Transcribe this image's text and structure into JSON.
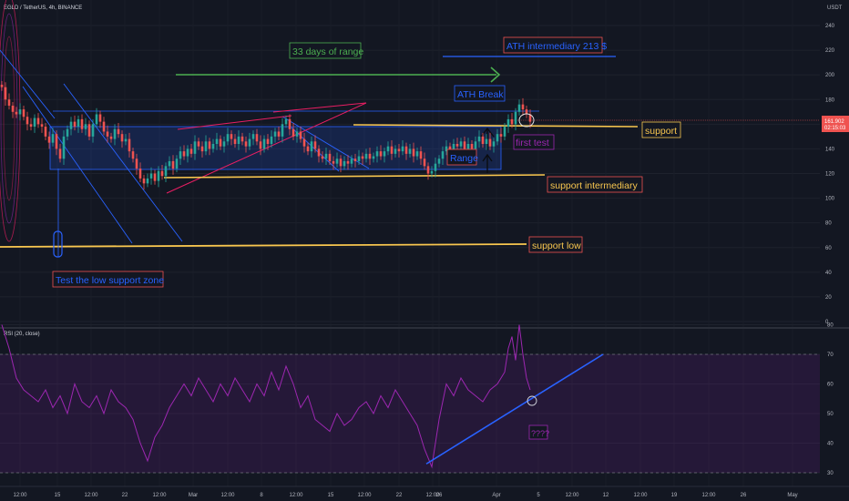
{
  "header": {
    "symbol": "EGLD / TetherUS, 4h, BINANCE",
    "currency": "USDT"
  },
  "price_axis": {
    "ticks": [
      "240",
      "220",
      "200",
      "180",
      "160",
      "140",
      "120",
      "100",
      "80",
      "60",
      "40",
      "20",
      "0"
    ],
    "last_price": "161.902",
    "countdown": "02:15:03"
  },
  "rsi_axis": {
    "ticks": [
      "80",
      "70",
      "60",
      "50",
      "40",
      "30"
    ]
  },
  "time_axis": {
    "ticks": [
      "12:00",
      "15",
      "12:00",
      "22",
      "12:00",
      "Mar",
      "12:00",
      "8",
      "12:00",
      "15",
      "12:00",
      "22",
      "12:00",
      "26",
      "Apr",
      "5",
      "12:00",
      "12",
      "12:00",
      "19",
      "12:00",
      "26",
      "May"
    ]
  },
  "annotations": {
    "range_days": "33 days of range",
    "ath_intermediary": "ATH intermediary 213 $",
    "ath_break": "ATH Break",
    "support": "support",
    "first_test": "first test",
    "range": "Range",
    "support_intermediary": "support  intermediary",
    "support_low": "support low",
    "test_low": "Test the low support zone",
    "rsi_question": "????"
  },
  "rsi_label": "RSI (20, close)",
  "colors": {
    "background": "#131722",
    "up": "#26a69a",
    "down": "#ef5350",
    "support": "#f9c74f",
    "trend": "#2962ff",
    "wedge": "#e91e63",
    "rsi": "#9c27b0",
    "arrow": "#4caf50"
  },
  "chart_data": [
    {
      "type": "candlestick",
      "title": "EGLD / TetherUS, 4h, BINANCE",
      "ylim": [
        0,
        245
      ],
      "x_ticks": [
        "12:00",
        "15",
        "12:00",
        "22",
        "12:00",
        "Mar",
        "12:00",
        "8",
        "12:00",
        "15",
        "12:00",
        "22",
        "12:00",
        "26",
        "Apr",
        "5",
        "12:00",
        "12",
        "12:00",
        "19",
        "12:00",
        "26",
        "May"
      ],
      "close_series": [
        [
          0,
          190
        ],
        [
          4,
          180
        ],
        [
          8,
          175
        ],
        [
          12,
          170
        ],
        [
          16,
          168
        ],
        [
          20,
          172
        ],
        [
          24,
          166
        ],
        [
          28,
          160
        ],
        [
          32,
          158
        ],
        [
          36,
          165
        ],
        [
          40,
          160
        ],
        [
          44,
          158
        ],
        [
          48,
          150
        ],
        [
          52,
          145
        ],
        [
          56,
          152
        ],
        [
          60,
          140
        ],
        [
          64,
          132
        ],
        [
          68,
          150
        ],
        [
          72,
          156
        ],
        [
          76,
          162
        ],
        [
          80,
          158
        ],
        [
          84,
          164
        ],
        [
          88,
          156
        ],
        [
          92,
          160
        ],
        [
          96,
          150
        ],
        [
          100,
          160
        ],
        [
          104,
          168
        ],
        [
          108,
          162
        ],
        [
          112,
          154
        ],
        [
          116,
          150
        ],
        [
          120,
          148
        ],
        [
          124,
          156
        ],
        [
          128,
          152
        ],
        [
          132,
          146
        ],
        [
          136,
          148
        ],
        [
          140,
          138
        ],
        [
          144,
          132
        ],
        [
          148,
          124
        ],
        [
          152,
          116
        ],
        [
          156,
          112
        ],
        [
          160,
          116
        ],
        [
          164,
          120
        ],
        [
          168,
          114
        ],
        [
          172,
          122
        ],
        [
          176,
          118
        ],
        [
          180,
          126
        ],
        [
          184,
          130
        ],
        [
          188,
          124
        ],
        [
          192,
          132
        ],
        [
          196,
          138
        ],
        [
          200,
          134
        ],
        [
          204,
          140
        ],
        [
          208,
          136
        ],
        [
          212,
          146
        ],
        [
          216,
          142
        ],
        [
          220,
          138
        ],
        [
          224,
          146
        ],
        [
          228,
          140
        ],
        [
          232,
          144
        ],
        [
          236,
          148
        ],
        [
          240,
          142
        ],
        [
          244,
          146
        ],
        [
          248,
          152
        ],
        [
          252,
          148
        ],
        [
          256,
          144
        ],
        [
          260,
          150
        ],
        [
          264,
          146
        ],
        [
          268,
          142
        ],
        [
          272,
          148
        ],
        [
          276,
          152
        ],
        [
          280,
          146
        ],
        [
          284,
          140
        ],
        [
          288,
          148
        ],
        [
          292,
          144
        ],
        [
          296,
          150
        ],
        [
          300,
          154
        ],
        [
          304,
          150
        ],
        [
          308,
          160
        ],
        [
          312,
          164
        ],
        [
          316,
          156
        ],
        [
          320,
          150
        ],
        [
          324,
          154
        ],
        [
          328,
          148
        ],
        [
          332,
          142
        ],
        [
          336,
          138
        ],
        [
          340,
          146
        ],
        [
          344,
          140
        ],
        [
          348,
          134
        ],
        [
          352,
          132
        ],
        [
          356,
          136
        ],
        [
          360,
          130
        ],
        [
          364,
          128
        ],
        [
          368,
          132
        ],
        [
          372,
          126
        ],
        [
          376,
          130
        ],
        [
          380,
          128
        ],
        [
          384,
          132
        ],
        [
          388,
          130
        ],
        [
          392,
          134
        ],
        [
          396,
          132
        ],
        [
          400,
          136
        ],
        [
          404,
          132
        ],
        [
          408,
          134
        ],
        [
          412,
          138
        ],
        [
          416,
          134
        ],
        [
          420,
          138
        ],
        [
          424,
          142
        ],
        [
          428,
          136
        ],
        [
          432,
          140
        ],
        [
          436,
          138
        ],
        [
          440,
          142
        ],
        [
          444,
          136
        ],
        [
          448,
          140
        ],
        [
          452,
          134
        ],
        [
          456,
          138
        ],
        [
          460,
          132
        ],
        [
          464,
          126
        ],
        [
          468,
          120
        ],
        [
          472,
          122
        ],
        [
          476,
          128
        ],
        [
          480,
          132
        ],
        [
          484,
          138
        ],
        [
          488,
          142
        ],
        [
          492,
          138
        ],
        [
          496,
          144
        ],
        [
          500,
          142
        ],
        [
          504,
          146
        ],
        [
          508,
          140
        ],
        [
          512,
          144
        ],
        [
          516,
          140
        ],
        [
          520,
          146
        ],
        [
          524,
          150
        ],
        [
          528,
          144
        ],
        [
          532,
          148
        ],
        [
          536,
          142
        ],
        [
          540,
          146
        ],
        [
          544,
          152
        ],
        [
          548,
          150
        ],
        [
          552,
          158
        ],
        [
          556,
          164
        ],
        [
          560,
          160
        ],
        [
          564,
          170
        ],
        [
          568,
          176
        ],
        [
          572,
          172
        ],
        [
          576,
          168
        ],
        [
          580,
          162
        ]
      ],
      "levels": [
        {
          "label": "ATH intermediary 213 $",
          "value": 213
        },
        {
          "label": "support",
          "value": 160
        },
        {
          "label": "support  intermediary",
          "value": 117
        },
        {
          "label": "support low",
          "value": 60
        }
      ],
      "last_price": 161.902
    },
    {
      "type": "line",
      "title": "RSI (20, close)",
      "ylim": [
        28,
        82
      ],
      "ref_lines": [
        70,
        30
      ],
      "series": [
        {
          "name": "RSI (20, close)",
          "x": [
            0,
            8,
            16,
            24,
            32,
            40,
            48,
            56,
            64,
            72,
            80,
            88,
            96,
            104,
            112,
            120,
            128,
            136,
            144,
            152,
            160,
            168,
            176,
            184,
            192,
            200,
            208,
            216,
            224,
            232,
            240,
            248,
            256,
            264,
            272,
            280,
            288,
            296,
            304,
            312,
            320,
            328,
            336,
            344,
            352,
            360,
            368,
            376,
            384,
            392,
            400,
            408,
            416,
            424,
            432,
            440,
            448,
            456,
            464,
            472,
            480,
            488,
            496,
            504,
            512,
            520,
            528,
            536,
            544,
            552,
            556,
            560,
            564,
            568,
            572,
            576,
            580
          ],
          "values": [
            80,
            72,
            62,
            58,
            56,
            54,
            58,
            52,
            56,
            50,
            60,
            54,
            52,
            56,
            50,
            58,
            54,
            52,
            48,
            40,
            34,
            42,
            46,
            52,
            56,
            60,
            56,
            62,
            58,
            54,
            60,
            56,
            62,
            58,
            54,
            60,
            56,
            64,
            58,
            66,
            60,
            52,
            56,
            48,
            46,
            44,
            50,
            46,
            48,
            52,
            54,
            50,
            56,
            52,
            58,
            54,
            50,
            46,
            38,
            32,
            48,
            60,
            56,
            62,
            58,
            56,
            54,
            58,
            60,
            64,
            72,
            76,
            68,
            80,
            70,
            62,
            58
          ]
        }
      ],
      "trendline": {
        "x": [
          468,
          662
        ],
        "values": [
          33,
          70
        ]
      }
    }
  ]
}
